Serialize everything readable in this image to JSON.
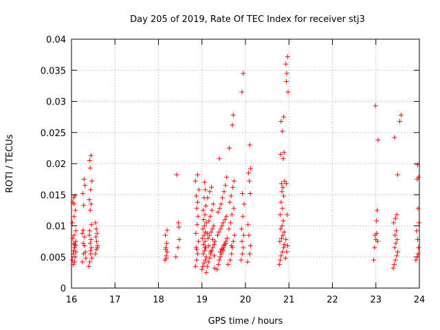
{
  "chart_data": {
    "type": "scatter",
    "title": "Day 205 of 2019, Rate Of TEC Index for receiver stj3",
    "xlabel": "GPS time / hours",
    "ylabel": "ROTI / TECUs",
    "xlim": [
      16,
      24
    ],
    "ylim": [
      0,
      0.04
    ],
    "xticks": [
      16,
      17,
      18,
      19,
      20,
      21,
      22,
      23,
      24
    ],
    "xtick_labels": [
      "16",
      "17",
      "18",
      "19",
      "20",
      "21",
      "22",
      "23",
      "24"
    ],
    "yticks": [
      0,
      0.005,
      0.01,
      0.015,
      0.02,
      0.025,
      0.03,
      0.035,
      0.04
    ],
    "ytick_labels": [
      "0",
      "0.005",
      "0.01",
      "0.015",
      "0.02",
      "0.025",
      "0.03",
      "0.035",
      "0.04"
    ],
    "grid": true,
    "marker": "+",
    "color": "#ff0000",
    "x": [
      16.02,
      16.04,
      16.05,
      16.07,
      16.08,
      16.1,
      16.03,
      16.06,
      16.09,
      16.05,
      16.08,
      16.04,
      16.07,
      16.1,
      16.02,
      16.06,
      16.09,
      16.03,
      16.05,
      16.08,
      16.06,
      16.1,
      16.25,
      16.28,
      16.3,
      16.27,
      16.32,
      16.25,
      16.3,
      16.28,
      16.26,
      16.31,
      16.29,
      16.27,
      16.33,
      16.4,
      16.42,
      16.44,
      16.46,
      16.43,
      16.45,
      16.41,
      16.47,
      16.44,
      16.42,
      16.46,
      16.43,
      16.45,
      16.41,
      16.44,
      16.47,
      16.43,
      16.45,
      16.42,
      16.55,
      16.57,
      16.6,
      16.58,
      16.56,
      16.59,
      16.57,
      16.55,
      16.6,
      18.15,
      18.18,
      18.2,
      18.17,
      18.19,
      18.16,
      18.2,
      18.18,
      18.17,
      18.4,
      18.45,
      18.48,
      18.47,
      18.42,
      18.46,
      18.85,
      18.88,
      18.9,
      18.87,
      18.92,
      18.86,
      18.89,
      18.91,
      18.88,
      18.9,
      18.87,
      18.93,
      18.85,
      18.9,
      18.88,
      19.0,
      19.02,
      19.05,
      19.08,
      19.1,
      19.03,
      19.06,
      19.09,
      19.04,
      19.07,
      19.01,
      19.05,
      19.08,
      19.02,
      19.06,
      19.1,
      19.04,
      19.07,
      19.03,
      19.09,
      19.05,
      19.08,
      19.06,
      19.1,
      19.07,
      19.12,
      19.15,
      19.18,
      19.2,
      19.22,
      19.25,
      19.28,
      19.3,
      19.14,
      19.17,
      19.21,
      19.24,
      19.27,
      19.16,
      19.19,
      19.23,
      19.26,
      19.13,
      19.18,
      19.22,
      19.29,
      19.2,
      19.16,
      19.25,
      19.12,
      19.28,
      19.35,
      19.38,
      19.4,
      19.42,
      19.45,
      19.48,
      19.5,
      19.52,
      19.55,
      19.58,
      19.36,
      19.39,
      19.43,
      19.46,
      19.49,
      19.53,
      19.56,
      19.37,
      19.41,
      19.44,
      19.47,
      19.51,
      19.54,
      19.57,
      19.4,
      19.45,
      19.5,
      19.55,
      19.42,
      19.48,
      19.6,
      19.65,
      19.68,
      19.7,
      19.72,
      19.75,
      19.62,
      19.66,
      19.69,
      19.73,
      19.64,
      19.67,
      19.71,
      19.74,
      19.63,
      19.7,
      19.72,
      19.68,
      19.9,
      19.93,
      19.95,
      19.92,
      19.96,
      19.91,
      19.94,
      19.97,
      19.93,
      19.95,
      19.92,
      20.05,
      20.1,
      20.12,
      20.08,
      20.06,
      20.11,
      20.09,
      20.07,
      20.12,
      20.1,
      20.78,
      20.8,
      20.82,
      20.85,
      20.88,
      20.9,
      20.79,
      20.83,
      20.86,
      20.89,
      20.81,
      20.84,
      20.87,
      20.8,
      20.85,
      20.82,
      20.88,
      20.84,
      20.86,
      20.83,
      20.9,
      20.87,
      20.81,
      20.89,
      20.85,
      20.82,
      20.88,
      20.92,
      20.95,
      20.97,
      20.93,
      20.96,
      20.94,
      20.98,
      20.95,
      20.93,
      20.97,
      20.94,
      22.95,
      22.97,
      23.0,
      22.98,
      23.02,
      23.03,
      23.05,
      22.99,
      23.01,
      23.04,
      23.4,
      23.42,
      23.45,
      23.48,
      23.5,
      23.43,
      23.46,
      23.49,
      23.44,
      23.47,
      23.41,
      23.45,
      23.48,
      23.5,
      23.43,
      23.55,
      23.58,
      23.92,
      23.95,
      23.97,
      23.98,
      23.96,
      23.94,
      23.99,
      23.97,
      23.95,
      23.98,
      23.96
    ],
    "y": [
      0.0045,
      0.0055,
      0.006,
      0.0065,
      0.007,
      0.0075,
      0.008,
      0.0085,
      0.0068,
      0.0072,
      0.005,
      0.0038,
      0.0042,
      0.0058,
      0.0105,
      0.0115,
      0.0125,
      0.0138,
      0.0145,
      0.0148,
      0.0135,
      0.0092,
      0.0042,
      0.0055,
      0.0068,
      0.0072,
      0.0058,
      0.0088,
      0.0082,
      0.0133,
      0.0152,
      0.0165,
      0.0175,
      0.0093,
      0.0048,
      0.0035,
      0.0042,
      0.0055,
      0.0065,
      0.0072,
      0.0078,
      0.0085,
      0.0048,
      0.006,
      0.0092,
      0.0102,
      0.0125,
      0.0135,
      0.0142,
      0.0158,
      0.0172,
      0.0193,
      0.0213,
      0.0205,
      0.0055,
      0.0062,
      0.0068,
      0.0075,
      0.0082,
      0.0088,
      0.0095,
      0.0105,
      0.0065,
      0.0045,
      0.0052,
      0.0058,
      0.0065,
      0.0072,
      0.0085,
      0.0093,
      0.0048,
      0.0062,
      0.005,
      0.0065,
      0.0078,
      0.0098,
      0.0182,
      0.0105,
      0.0035,
      0.0045,
      0.0055,
      0.0065,
      0.0075,
      0.0088,
      0.0102,
      0.0115,
      0.0128,
      0.0138,
      0.0148,
      0.0158,
      0.0172,
      0.0182,
      0.0062,
      0.003,
      0.0035,
      0.004,
      0.0045,
      0.005,
      0.0055,
      0.006,
      0.0065,
      0.007,
      0.0075,
      0.008,
      0.0085,
      0.009,
      0.0095,
      0.01,
      0.0105,
      0.011,
      0.0118,
      0.0125,
      0.0132,
      0.0145,
      0.0158,
      0.017,
      0.0025,
      0.0065,
      0.0035,
      0.0042,
      0.0048,
      0.0055,
      0.006,
      0.0065,
      0.007,
      0.0075,
      0.008,
      0.0085,
      0.009,
      0.0095,
      0.01,
      0.0108,
      0.0115,
      0.0125,
      0.0135,
      0.0145,
      0.0155,
      0.0162,
      0.0032,
      0.0058,
      0.0068,
      0.0078,
      0.0088,
      0.0052,
      0.003,
      0.0038,
      0.0045,
      0.005,
      0.0055,
      0.006,
      0.0065,
      0.007,
      0.0075,
      0.008,
      0.0085,
      0.009,
      0.0095,
      0.01,
      0.0105,
      0.011,
      0.0115,
      0.0122,
      0.0128,
      0.0135,
      0.0145,
      0.0155,
      0.0165,
      0.0178,
      0.0208,
      0.0063,
      0.0068,
      0.0072,
      0.0058,
      0.0062,
      0.0038,
      0.0045,
      0.0055,
      0.0065,
      0.0075,
      0.0085,
      0.0095,
      0.0105,
      0.0118,
      0.0128,
      0.0138,
      0.0148,
      0.0162,
      0.0172,
      0.0225,
      0.0262,
      0.0278,
      0.0068,
      0.0045,
      0.0055,
      0.0065,
      0.0075,
      0.0085,
      0.0095,
      0.0115,
      0.0135,
      0.0152,
      0.0345,
      0.0315,
      0.0042,
      0.0055,
      0.0068,
      0.0085,
      0.0102,
      0.0152,
      0.0172,
      0.0185,
      0.0192,
      0.023,
      0.0038,
      0.0045,
      0.0052,
      0.0058,
      0.0065,
      0.007,
      0.0075,
      0.008,
      0.0085,
      0.009,
      0.0095,
      0.01,
      0.0108,
      0.0118,
      0.0128,
      0.0138,
      0.0148,
      0.0155,
      0.0162,
      0.0168,
      0.0172,
      0.0208,
      0.0215,
      0.0218,
      0.0252,
      0.0268,
      0.0275,
      0.0048,
      0.0058,
      0.0068,
      0.0078,
      0.0118,
      0.0168,
      0.0315,
      0.0345,
      0.036,
      0.0372,
      0.0332,
      0.0045,
      0.0065,
      0.0078,
      0.0085,
      0.0088,
      0.0125,
      0.0238,
      0.0293,
      0.0108,
      0.0075,
      0.0032,
      0.0038,
      0.0045,
      0.0052,
      0.0058,
      0.0065,
      0.0072,
      0.0078,
      0.0085,
      0.0092,
      0.0105,
      0.0112,
      0.0118,
      0.0182,
      0.0242,
      0.0268,
      0.0278,
      0.0045,
      0.005,
      0.0055,
      0.0065,
      0.0078,
      0.0092,
      0.0105,
      0.0128,
      0.0175,
      0.0178,
      0.0198
    ]
  }
}
